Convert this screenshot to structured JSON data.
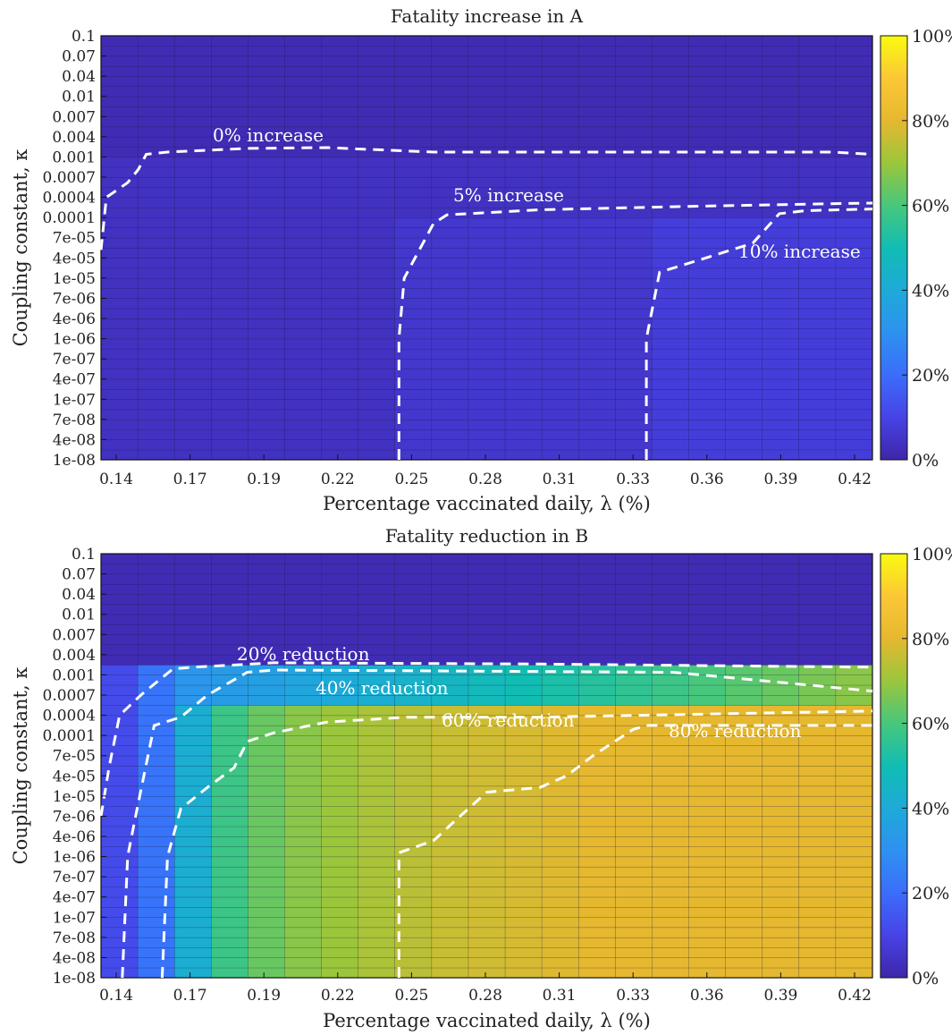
{
  "colorbar": {
    "min": 0,
    "max": 100,
    "ticks": [
      "0%",
      "20%",
      "40%",
      "60%",
      "80%",
      "100%"
    ],
    "tick_values": [
      0,
      20,
      40,
      60,
      80,
      100
    ],
    "colormap": "parula"
  },
  "chart_data": [
    {
      "type": "heatmap",
      "title": "Fatality increase in A",
      "xlabel": "Percentage vaccinated daily, λ (%)",
      "ylabel": "Coupling constant, κ",
      "x_ticks": [
        "0.14",
        "0.17",
        "0.19",
        "0.22",
        "0.25",
        "0.28",
        "0.31",
        "0.33",
        "0.36",
        "0.39",
        "0.42"
      ],
      "y_ticks": [
        "1e-08",
        "4e-08",
        "7e-08",
        "1e-07",
        "4e-07",
        "7e-07",
        "1e-06",
        "4e-06",
        "7e-06",
        "1e-05",
        "4e-05",
        "7e-05",
        "0.0001",
        "0.0004",
        "0.0007",
        "0.001",
        "0.004",
        "0.007",
        "0.01",
        "0.04",
        "0.07",
        "0.1"
      ],
      "x_range": [
        0.135,
        0.425
      ],
      "grid": "cell borders",
      "contours": [
        {
          "label": "0% increase",
          "level": 0,
          "points": [
            [
              0.135,
              5e-05
            ],
            [
              0.137,
              0.0004
            ],
            [
              0.145,
              0.0006
            ],
            [
              0.149,
              0.0008
            ],
            [
              0.152,
              0.0012
            ],
            [
              0.16,
              0.0014
            ],
            [
              0.19,
              0.0018
            ],
            [
              0.22,
              0.0019
            ],
            [
              0.26,
              0.0014
            ],
            [
              0.3,
              0.0014
            ],
            [
              0.41,
              0.0014
            ],
            [
              0.425,
              0.0012
            ]
          ]
        },
        {
          "label": "5% increase",
          "level": 5,
          "points": [
            [
              0.247,
              1e-08
            ],
            [
              0.247,
              1e-06
            ],
            [
              0.249,
              1e-05
            ],
            [
              0.26,
              9e-05
            ],
            [
              0.265,
              0.00012
            ],
            [
              0.3,
              0.00017
            ],
            [
              0.35,
              0.00021
            ],
            [
              0.4,
              0.00025
            ],
            [
              0.425,
              0.00027
            ]
          ]
        },
        {
          "label": "10% increase",
          "level": 10,
          "points": [
            [
              0.34,
              1e-08
            ],
            [
              0.34,
              1e-06
            ],
            [
              0.345,
              1.5e-05
            ],
            [
              0.36,
              3.5e-05
            ],
            [
              0.38,
              6e-05
            ],
            [
              0.39,
              0.00013
            ],
            [
              0.4,
              0.00016
            ],
            [
              0.425,
              0.00018
            ]
          ]
        }
      ],
      "regions": [
        {
          "x": [
            0.135,
            0.247
          ],
          "y_max": 0.001,
          "value": 3
        },
        {
          "x": [
            0.247,
            0.34
          ],
          "y_max": 0.0001,
          "value": 6
        },
        {
          "x": [
            0.34,
            0.425
          ],
          "y_max": 0.0001,
          "value": 9
        },
        {
          "x": [
            0.135,
            0.425
          ],
          "y_above": 0.001,
          "value": 2
        }
      ]
    },
    {
      "type": "heatmap",
      "title": "Fatality reduction in B",
      "xlabel": "Percentage vaccinated daily, λ (%)",
      "ylabel": "Coupling constant, κ",
      "x_ticks": [
        "0.14",
        "0.17",
        "0.19",
        "0.22",
        "0.25",
        "0.28",
        "0.31",
        "0.33",
        "0.36",
        "0.39",
        "0.42"
      ],
      "y_ticks": [
        "1e-08",
        "4e-08",
        "7e-08",
        "1e-07",
        "4e-07",
        "7e-07",
        "1e-06",
        "4e-06",
        "7e-06",
        "1e-05",
        "4e-05",
        "7e-05",
        "0.0001",
        "0.0004",
        "0.0007",
        "0.001",
        "0.004",
        "0.007",
        "0.01",
        "0.04",
        "0.07",
        "0.1"
      ],
      "x_range": [
        0.135,
        0.425
      ],
      "grid": "cell borders",
      "column_values": [
        12,
        22,
        42,
        58,
        64,
        68,
        70,
        72,
        74,
        76,
        77,
        78,
        79,
        80,
        80,
        80,
        80,
        80,
        80,
        80,
        80
      ],
      "contours": [
        {
          "label": "20% reduction",
          "level": 20,
          "points": [
            [
              0.135,
              7e-06
            ],
            [
              0.138,
              5e-05
            ],
            [
              0.142,
              0.0004
            ],
            [
              0.15,
              0.0007
            ],
            [
              0.162,
              0.0015
            ],
            [
              0.17,
              0.0017
            ],
            [
              0.2,
              0.0023
            ],
            [
              0.3,
              0.0021
            ],
            [
              0.425,
              0.0017
            ]
          ]
        },
        {
          "label": "40% reduction",
          "level": 40,
          "points": [
            [
              0.143,
              1e-08
            ],
            [
              0.145,
              1e-06
            ],
            [
              0.148,
              7e-06
            ],
            [
              0.155,
              0.0002
            ],
            [
              0.165,
              0.00035
            ],
            [
              0.175,
              0.0007
            ],
            [
              0.19,
              0.0012
            ],
            [
              0.2,
              0.0014
            ],
            [
              0.35,
              0.0012
            ],
            [
              0.425,
              0.00075
            ]
          ]
        },
        {
          "label": "60% reduction",
          "level": 60,
          "points": [
            [
              0.158,
              1e-08
            ],
            [
              0.16,
              1e-06
            ],
            [
              0.165,
              8e-06
            ],
            [
              0.175,
              1.8e-05
            ],
            [
              0.185,
              5e-05
            ],
            [
              0.19,
              9e-05
            ],
            [
              0.2,
              0.00012
            ],
            [
              0.22,
              0.00025
            ],
            [
              0.25,
              0.00035
            ],
            [
              0.3,
              0.00035
            ],
            [
              0.425,
              0.00045
            ]
          ]
        },
        {
          "label": "80% reduction",
          "level": 80,
          "points": [
            [
              0.247,
              1e-08
            ],
            [
              0.247,
              1.3e-06
            ],
            [
              0.26,
              3e-06
            ],
            [
              0.27,
              7e-06
            ],
            [
              0.28,
              1.3e-05
            ],
            [
              0.3,
              1.8e-05
            ],
            [
              0.31,
              4e-05
            ],
            [
              0.32,
              7e-05
            ],
            [
              0.335,
              0.00015
            ],
            [
              0.34,
              0.0002
            ],
            [
              0.425,
              0.0002
            ]
          ]
        }
      ]
    }
  ]
}
